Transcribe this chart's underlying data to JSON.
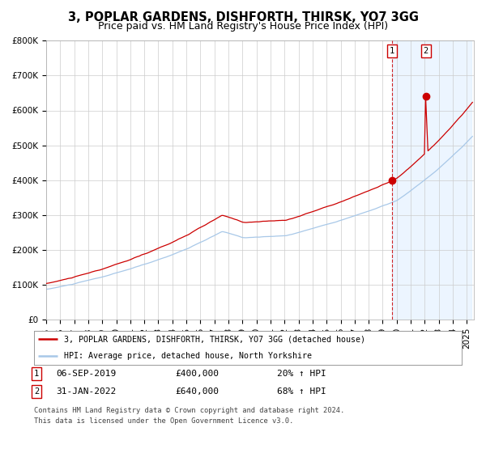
{
  "title": "3, POPLAR GARDENS, DISHFORTH, THIRSK, YO7 3GG",
  "subtitle": "Price paid vs. HM Land Registry's House Price Index (HPI)",
  "ylim": [
    0,
    800000
  ],
  "yticks": [
    0,
    100000,
    200000,
    300000,
    400000,
    500000,
    600000,
    700000,
    800000
  ],
  "ytick_labels": [
    "£0",
    "£100K",
    "£200K",
    "£300K",
    "£400K",
    "£500K",
    "£600K",
    "£700K",
    "£800K"
  ],
  "hpi_color": "#a8c8e8",
  "price_color": "#cc0000",
  "sale1_date": 2019.67,
  "sale1_price": 400000,
  "sale2_date": 2022.08,
  "sale2_price": 640000,
  "sale1_label": "06-SEP-2019",
  "sale2_label": "31-JAN-2022",
  "sale1_price_str": "£400,000",
  "sale2_price_str": "£640,000",
  "sale1_pct": "20% ↑ HPI",
  "sale2_pct": "68% ↑ HPI",
  "legend1": "3, POPLAR GARDENS, DISHFORTH, THIRSK, YO7 3GG (detached house)",
  "legend2": "HPI: Average price, detached house, North Yorkshire",
  "footnote1": "Contains HM Land Registry data © Crown copyright and database right 2024.",
  "footnote2": "This data is licensed under the Open Government Licence v3.0.",
  "bg_highlight_color": "#ddeeff",
  "shade_start": 2019.67,
  "shade_end": 2025.3,
  "title_fontsize": 10.5,
  "subtitle_fontsize": 9,
  "tick_fontsize": 7.5,
  "xlim_start": 1995.0,
  "xlim_end": 2025.5
}
